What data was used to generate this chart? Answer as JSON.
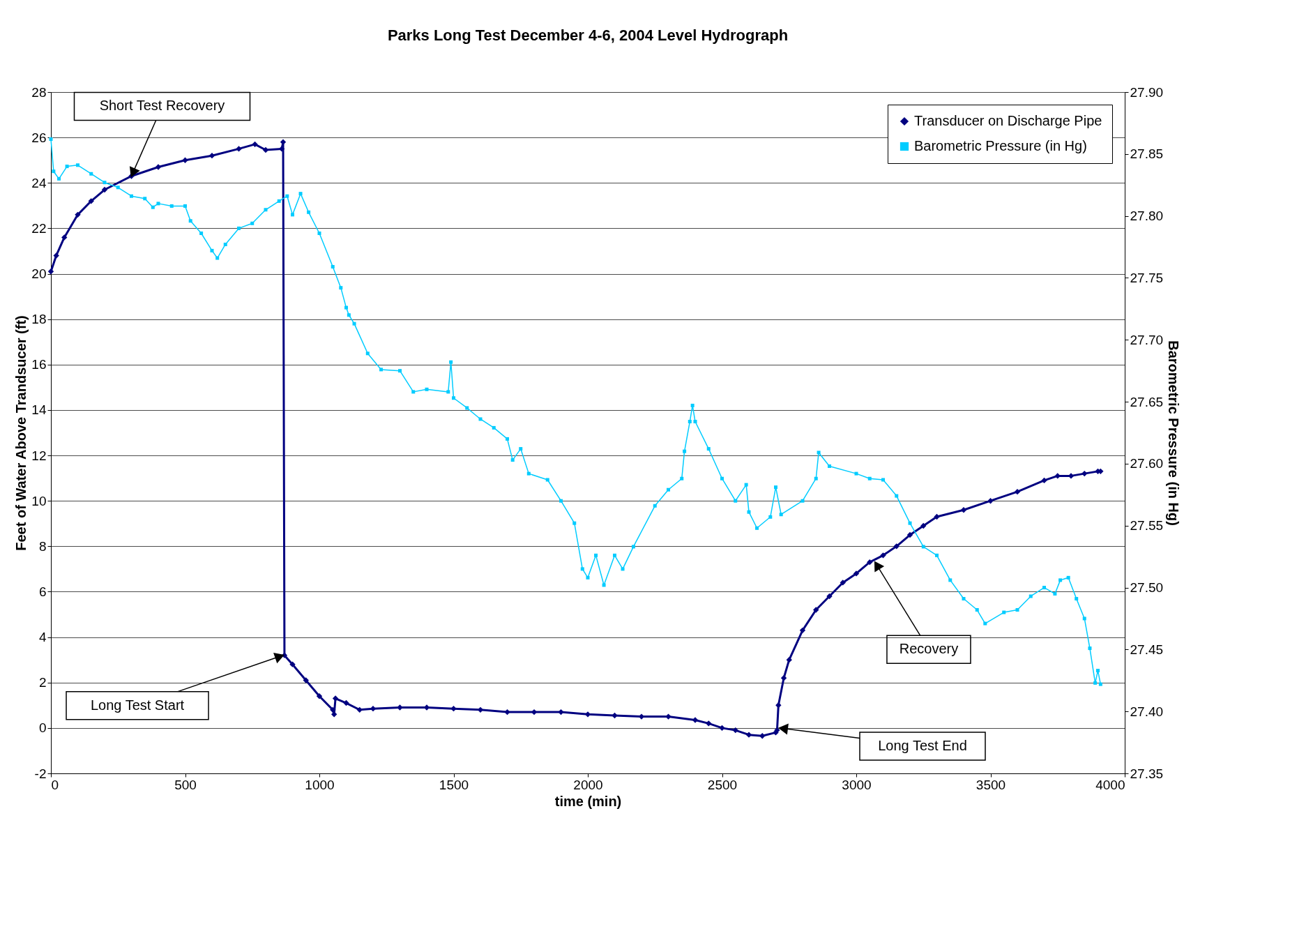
{
  "chart_data": {
    "type": "line",
    "title": "Parks Long Test December 4-6, 2004 Level Hydrograph",
    "xlabel": "time (min)",
    "ylabel": "Feet of Water Above Trandsucer (ft)",
    "y2label": "Barometric Pressure (in Hg)",
    "xlim": [
      0,
      4000
    ],
    "xticks": [
      0,
      500,
      1000,
      1500,
      2000,
      2500,
      3000,
      3500,
      4000
    ],
    "ylim": [
      -2,
      28
    ],
    "yticks": [
      -2,
      0,
      2,
      4,
      6,
      8,
      10,
      12,
      14,
      16,
      18,
      20,
      22,
      24,
      26,
      28
    ],
    "y2lim": [
      27.35,
      27.9
    ],
    "y2ticks": [
      {
        "value": 27.35,
        "label": "27.35"
      },
      {
        "value": 27.4,
        "label": "27.40"
      },
      {
        "value": 27.45,
        "label": "27.45"
      },
      {
        "value": 27.5,
        "label": "27.50"
      },
      {
        "value": 27.55,
        "label": "27.55"
      },
      {
        "value": 27.6,
        "label": "27.60"
      },
      {
        "value": 27.65,
        "label": "27.65"
      },
      {
        "value": 27.7,
        "label": "27.70"
      },
      {
        "value": 27.75,
        "label": "27.75"
      },
      {
        "value": 27.8,
        "label": "27.80"
      },
      {
        "value": 27.85,
        "label": "27.85"
      },
      {
        "value": 27.9,
        "label": "27.90"
      }
    ],
    "grid": "y",
    "legend": "top right",
    "series": [
      {
        "name": "Transducer on Discharge Pipe",
        "color": "#000080",
        "marker": "diamond",
        "x": [
          0,
          20,
          50,
          100,
          150,
          200,
          300,
          400,
          500,
          600,
          700,
          760,
          800,
          860,
          865,
          870,
          900,
          950,
          1000,
          1050,
          1055,
          1060,
          1100,
          1150,
          1200,
          1300,
          1400,
          1500,
          1600,
          1700,
          1800,
          1900,
          2000,
          2100,
          2200,
          2300,
          2400,
          2450,
          2500,
          2550,
          2600,
          2650,
          2700,
          2705,
          2710,
          2730,
          2750,
          2800,
          2850,
          2900,
          2950,
          3000,
          3050,
          3100,
          3150,
          3200,
          3250,
          3300,
          3400,
          3500,
          3600,
          3700,
          3750,
          3800,
          3850,
          3900,
          3910
        ],
        "values": [
          20.1,
          20.8,
          21.6,
          22.6,
          23.2,
          23.7,
          24.3,
          24.7,
          25.0,
          25.2,
          25.5,
          25.7,
          25.45,
          25.5,
          25.8,
          3.2,
          2.8,
          2.1,
          1.4,
          0.8,
          0.6,
          1.3,
          1.1,
          0.8,
          0.85,
          0.9,
          0.9,
          0.85,
          0.8,
          0.7,
          0.7,
          0.7,
          0.6,
          0.55,
          0.5,
          0.5,
          0.35,
          0.2,
          0.0,
          -0.1,
          -0.3,
          -0.35,
          -0.2,
          -0.1,
          1.0,
          2.2,
          3.0,
          4.3,
          5.2,
          5.8,
          6.4,
          6.8,
          7.3,
          7.6,
          8.0,
          8.5,
          8.9,
          9.3,
          9.6,
          10.0,
          10.4,
          10.9,
          11.1,
          11.1,
          11.2,
          11.3,
          11.3
        ]
      },
      {
        "name": "Barometric Pressure (in Hg)",
        "color": "#00ccff",
        "marker": "square",
        "axis": "y2",
        "x": [
          0,
          10,
          30,
          60,
          100,
          150,
          200,
          250,
          300,
          350,
          380,
          400,
          450,
          500,
          520,
          560,
          600,
          620,
          650,
          700,
          750,
          800,
          850,
          880,
          900,
          930,
          960,
          1000,
          1050,
          1080,
          1100,
          1110,
          1130,
          1180,
          1230,
          1300,
          1350,
          1400,
          1480,
          1490,
          1500,
          1550,
          1600,
          1650,
          1700,
          1720,
          1750,
          1780,
          1850,
          1900,
          1950,
          1980,
          2000,
          2030,
          2060,
          2100,
          2130,
          2170,
          2250,
          2300,
          2350,
          2360,
          2380,
          2390,
          2400,
          2450,
          2500,
          2550,
          2590,
          2600,
          2630,
          2680,
          2700,
          2720,
          2800,
          2850,
          2860,
          2900,
          3000,
          3050,
          3100,
          3150,
          3200,
          3250,
          3300,
          3350,
          3400,
          3450,
          3480,
          3550,
          3600,
          3650,
          3700,
          3740,
          3760,
          3790,
          3820,
          3850,
          3870,
          3890,
          3900,
          3910
        ],
        "values": [
          27.862,
          27.836,
          27.83,
          27.84,
          27.841,
          27.834,
          27.827,
          27.823,
          27.816,
          27.814,
          27.807,
          27.81,
          27.808,
          27.808,
          27.796,
          27.786,
          27.772,
          27.766,
          27.777,
          27.79,
          27.794,
          27.805,
          27.812,
          27.816,
          27.801,
          27.818,
          27.803,
          27.786,
          27.759,
          27.742,
          27.726,
          27.72,
          27.713,
          27.689,
          27.676,
          27.675,
          27.658,
          27.66,
          27.658,
          27.682,
          27.653,
          27.645,
          27.636,
          27.629,
          27.62,
          27.603,
          27.612,
          27.592,
          27.587,
          27.57,
          27.552,
          27.515,
          27.508,
          27.526,
          27.502,
          27.526,
          27.515,
          27.533,
          27.566,
          27.579,
          27.588,
          27.61,
          27.634,
          27.647,
          27.634,
          27.612,
          27.588,
          27.57,
          27.583,
          27.561,
          27.548,
          27.557,
          27.581,
          27.559,
          27.57,
          27.588,
          27.609,
          27.598,
          27.592,
          27.588,
          27.587,
          27.574,
          27.552,
          27.533,
          27.526,
          27.506,
          27.491,
          27.482,
          27.471,
          27.48,
          27.482,
          27.493,
          27.5,
          27.495,
          27.506,
          27.508,
          27.491,
          27.475,
          27.451,
          27.423,
          27.433,
          27.422
        ]
      }
    ],
    "annotations": [
      {
        "text": "Short Test Recovery",
        "x": 300,
        "y": 24.3
      },
      {
        "text": "Long Test Start",
        "x": 865,
        "y": 3.2
      },
      "Long Test End",
      {
        "text": "Recovery",
        "x": 3070,
        "y": 7.3
      }
    ]
  }
}
